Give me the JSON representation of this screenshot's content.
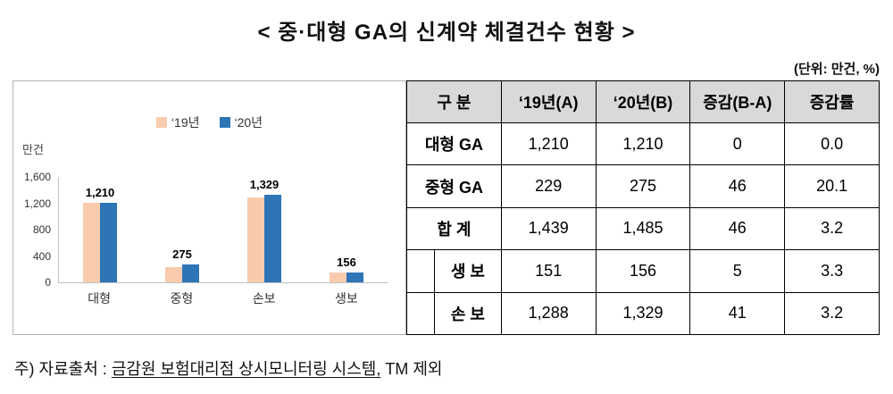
{
  "title": "< 중·대형 GA의 신계약 체결건수 현황 >",
  "unit_note": "(단위: 만건, %)",
  "chart_data": {
    "type": "bar",
    "title": "",
    "xlabel": "",
    "ylabel": "만건",
    "categories": [
      "대형",
      "중형",
      "손보",
      "생보"
    ],
    "series": [
      {
        "name": "‘19년",
        "color": "#F8CBAD",
        "values": [
          1210,
          229,
          1288,
          151
        ]
      },
      {
        "name": "‘20년",
        "color": "#2E75B6",
        "values": [
          1210,
          275,
          1329,
          156
        ]
      }
    ],
    "bar_labels": [
      "1,210",
      "275",
      "1,329",
      "156"
    ],
    "ylim": [
      0,
      1600
    ],
    "ytick_values": [
      0,
      400,
      800,
      1200,
      1600
    ],
    "ytick_labels": [
      "0",
      "400",
      "800",
      "1,200",
      "1,600"
    ],
    "grid": false,
    "legend_position": "top"
  },
  "table": {
    "headers": [
      "구 분",
      "‘19년(A)",
      "‘20년(B)",
      "증감(B-A)",
      "증감률"
    ],
    "rows": [
      {
        "label": "대형 GA",
        "indent": false,
        "values": [
          "1,210",
          "1,210",
          "0",
          "0.0"
        ]
      },
      {
        "label": "중형 GA",
        "indent": false,
        "values": [
          "229",
          "275",
          "46",
          "20.1"
        ]
      },
      {
        "label": "합 계",
        "indent": false,
        "values": [
          "1,439",
          "1,485",
          "46",
          "3.2"
        ]
      },
      {
        "label": "생 보",
        "indent": true,
        "values": [
          "151",
          "156",
          "5",
          "3.3"
        ]
      },
      {
        "label": "손 보",
        "indent": true,
        "values": [
          "1,288",
          "1,329",
          "41",
          "3.2"
        ]
      }
    ]
  },
  "footer": {
    "prefix": "주) 자료출처 : ",
    "underlined": "금감원 보험대리점 상시모니터링 시스템,",
    "suffix": " TM 제외"
  }
}
